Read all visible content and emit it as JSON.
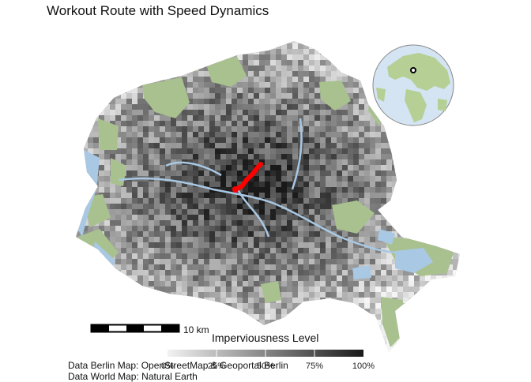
{
  "title": "Workout Route with Speed Dynamics",
  "scale_bar": {
    "label": "10 km"
  },
  "legend": {
    "title": "Imperviousness Level",
    "ticks": [
      "0%",
      "25%",
      "50%",
      "75%",
      "100%"
    ],
    "colors": [
      "#f2f2f2",
      "#1a1a1a"
    ]
  },
  "captions": {
    "line1": "Data Berlin Map: OpenStreetMap & Geoportal Berlin",
    "line2": "Data World Map: Natural Earth"
  },
  "colors": {
    "route": "#ff0000",
    "green_areas": "#a9c18f",
    "water": "#a8c8e4",
    "globe_ocean": "#d4e4f2",
    "globe_land": "#b5cf94"
  },
  "icons": [
    "globe-inset",
    "location-marker-icon"
  ]
}
